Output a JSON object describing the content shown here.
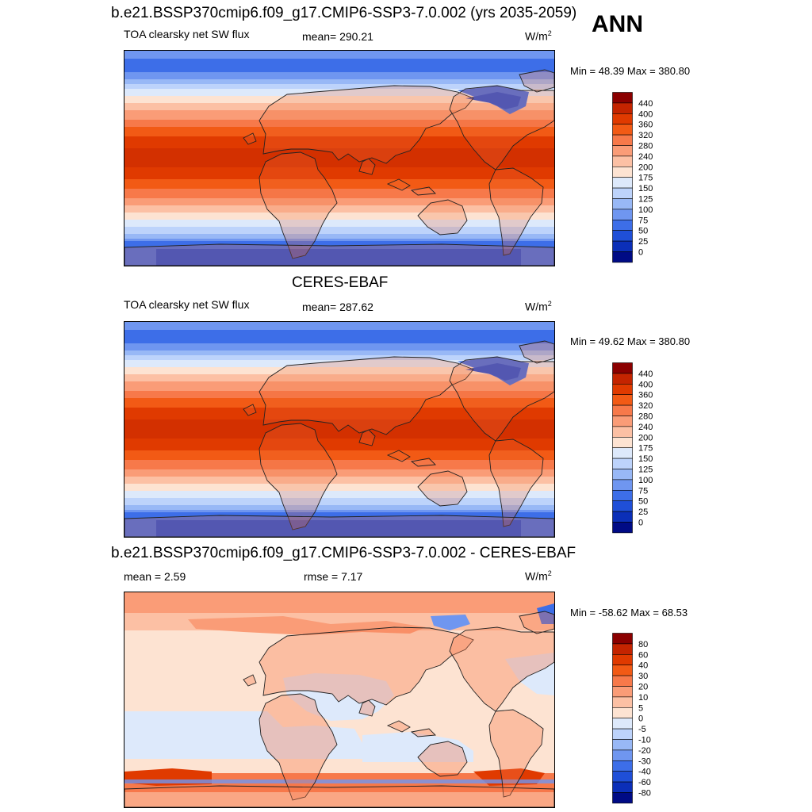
{
  "season": "ANN",
  "panels": [
    {
      "title": "b.e21.BSSP370cmip6.f09_g17.CMIP6-SSP3-7.0.002 (yrs 2035-2059)",
      "left_label": "TOA clearsky net SW flux",
      "center_label": "mean= 290.21",
      "units": "W/m",
      "units_sup": "2",
      "minmax": "Min =  48.39 Max = 380.80",
      "colorbar_ticks": [
        "440",
        "400",
        "360",
        "320",
        "280",
        "240",
        "200",
        "175",
        "150",
        "125",
        "100",
        "75",
        "50",
        "25",
        "0"
      ],
      "colorbar_colors": [
        "#8b0000",
        "#c42400",
        "#e03a00",
        "#f25a15",
        "#f7794a",
        "#fa9c77",
        "#fcc0a4",
        "#fde3d2",
        "#dde9fb",
        "#bdd3fb",
        "#98b8f6",
        "#6f96f0",
        "#3d6ee8",
        "#1f4fd8",
        "#0b2fb8",
        "#000b85"
      ],
      "map_type": "absolute"
    },
    {
      "title": "CERES-EBAF",
      "left_label": "TOA clearsky net SW flux",
      "center_label": "mean= 287.62",
      "units": "W/m",
      "units_sup": "2",
      "minmax": "Min =  49.62 Max = 380.80",
      "colorbar_ticks": [
        "440",
        "400",
        "360",
        "320",
        "280",
        "240",
        "200",
        "175",
        "150",
        "125",
        "100",
        "75",
        "50",
        "25",
        "0"
      ],
      "colorbar_colors": [
        "#8b0000",
        "#c42400",
        "#e03a00",
        "#f25a15",
        "#f7794a",
        "#fa9c77",
        "#fcc0a4",
        "#fde3d2",
        "#dde9fb",
        "#bdd3fb",
        "#98b8f6",
        "#6f96f0",
        "#3d6ee8",
        "#1f4fd8",
        "#0b2fb8",
        "#000b85"
      ],
      "map_type": "absolute"
    },
    {
      "title": "b.e21.BSSP370cmip6.f09_g17.CMIP6-SSP3-7.0.002 - CERES-EBAF",
      "left_label": "mean =   2.59",
      "center_label": "rmse =   7.17",
      "units": "W/m",
      "units_sup": "2",
      "minmax": "Min = -58.62 Max =  68.53",
      "colorbar_ticks": [
        "80",
        "60",
        "40",
        "30",
        "20",
        "10",
        "5",
        "0",
        "-5",
        "-10",
        "-20",
        "-30",
        "-40",
        "-60",
        "-80"
      ],
      "colorbar_colors": [
        "#8b0000",
        "#c42400",
        "#e03a00",
        "#f25a15",
        "#f7794a",
        "#fa9c77",
        "#fcc0a4",
        "#fde3d2",
        "#dde9fb",
        "#bdd3fb",
        "#98b8f6",
        "#6f96f0",
        "#3d6ee8",
        "#1f4fd8",
        "#0b2fb8",
        "#000b85"
      ],
      "map_type": "difference"
    }
  ]
}
